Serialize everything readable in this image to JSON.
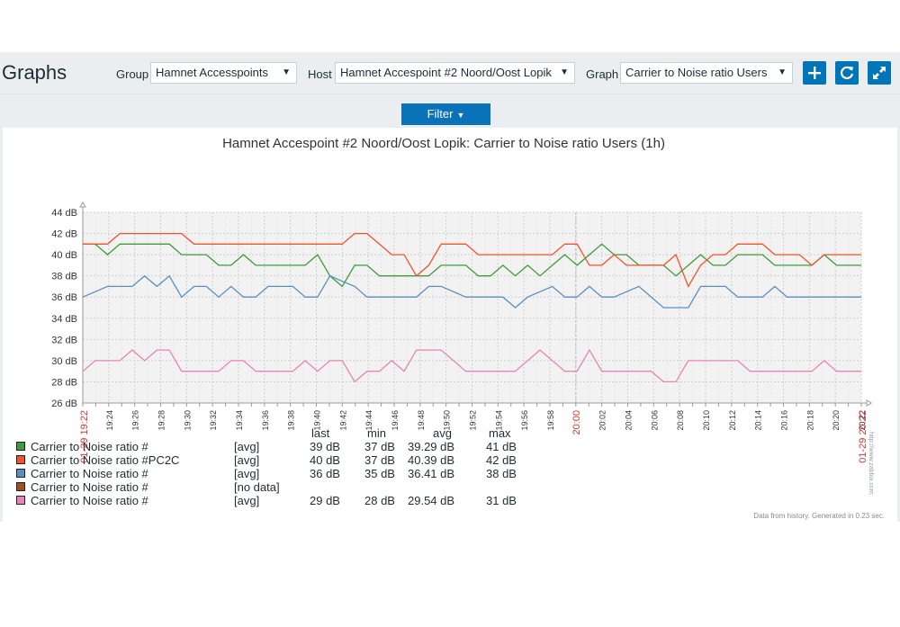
{
  "page": {
    "title": "Graphs"
  },
  "controls": {
    "group_label": "Group",
    "group_value": "Hamnet Accesspoints",
    "host_label": "Host",
    "host_value": "Hamnet Accespoint #2 Noord/Oost Lopik",
    "graph_label": "Graph",
    "graph_value": "Carrier to Noise ratio Users",
    "filter_label": "Filter"
  },
  "icons": [
    "plus-icon",
    "refresh-icon",
    "fullscreen-icon",
    "chevron-down-icon"
  ],
  "colors": {
    "accent": "#0275b8",
    "green": "#3f9a3a",
    "orange": "#f0542a",
    "blue": "#5b8fbe",
    "brown": "#a04d22",
    "pink": "#e884b6"
  },
  "chart_data": {
    "type": "line",
    "title": "Hamnet Accespoint #2 Noord/Oost Lopik: Carrier to Noise ratio Users (1h)",
    "ylim": [
      26,
      44
    ],
    "y_ticks": [
      "44 dB",
      "42 dB",
      "40 dB",
      "38 dB",
      "36 dB",
      "34 dB",
      "32 dB",
      "30 dB",
      "28 dB",
      "26 dB"
    ],
    "x_ticks": [
      "19:24",
      "19:26",
      "19:28",
      "19:30",
      "19:32",
      "19:34",
      "19:36",
      "19:38",
      "19:40",
      "19:42",
      "19:44",
      "19:46",
      "19:48",
      "19:50",
      "19:52",
      "19:54",
      "19:56",
      "19:58",
      "20:00",
      "20:02",
      "20:04",
      "20:06",
      "20:08",
      "20:10",
      "20:12",
      "20:14",
      "20:16",
      "20:18",
      "20:20",
      "20:22"
    ],
    "x_start_label": "01-29 19:22",
    "x_end_label": "01-29 20:22",
    "grid": true,
    "legend_placement": "bottom",
    "series": [
      {
        "color": "#3f9a3a",
        "values": [
          41,
          41,
          40,
          41,
          41,
          41,
          41,
          41,
          40,
          40,
          40,
          39,
          39,
          40,
          39,
          39,
          39,
          39,
          39,
          40,
          38,
          37,
          39,
          39,
          38,
          38,
          38,
          38,
          38,
          39,
          39,
          39,
          38,
          38,
          39,
          38,
          39,
          38,
          39,
          40,
          39,
          40,
          41,
          40,
          40,
          39,
          39,
          39,
          38,
          39,
          40,
          39,
          39,
          40,
          40,
          40,
          39,
          39,
          39,
          39,
          40,
          39,
          39,
          39
        ]
      },
      {
        "color": "#f0542a",
        "values": [
          41,
          41,
          41,
          42,
          42,
          42,
          42,
          42,
          42,
          41,
          41,
          41,
          41,
          41,
          41,
          41,
          41,
          41,
          41,
          41,
          41,
          41,
          42,
          42,
          41,
          40,
          40,
          38,
          39,
          41,
          41,
          41,
          40,
          40,
          40,
          40,
          40,
          40,
          40,
          41,
          41,
          39,
          39,
          40,
          39,
          39,
          39,
          39,
          40,
          37,
          39,
          40,
          40,
          41,
          41,
          41,
          40,
          40,
          40,
          39,
          40,
          40,
          40,
          40
        ]
      },
      {
        "color": "#5b8fbe",
        "values": [
          36,
          36.5,
          37,
          37,
          37,
          38,
          37,
          38,
          36,
          37,
          37,
          36,
          37,
          36,
          36,
          37,
          37,
          37,
          36,
          36,
          38,
          37.5,
          37,
          36,
          36,
          36,
          36,
          36,
          37,
          37,
          36.5,
          36,
          36,
          36,
          36,
          35,
          36,
          36.5,
          37,
          36,
          36,
          37,
          36,
          36,
          36.5,
          37,
          36,
          35,
          35,
          35,
          37,
          37,
          37,
          36,
          36,
          36,
          37,
          36,
          36,
          36,
          36,
          36,
          36,
          36
        ]
      },
      {
        "color": "#e884b6",
        "values": [
          29,
          30,
          30,
          30,
          31,
          30,
          31,
          31,
          29,
          29,
          29,
          29,
          30,
          30,
          29,
          29,
          29,
          29,
          30,
          29,
          30,
          30,
          28,
          29,
          29,
          30,
          29,
          31,
          31,
          31,
          30,
          29,
          29,
          29,
          29,
          29,
          30,
          31,
          30,
          29,
          29,
          31,
          29,
          29,
          29,
          29,
          29,
          28,
          28,
          30,
          30,
          30,
          30,
          30,
          29,
          29,
          29,
          29,
          29,
          29,
          30,
          29,
          29,
          29
        ]
      }
    ]
  },
  "legend": {
    "headers": [
      "last",
      "min",
      "avg",
      "max"
    ],
    "rows": [
      {
        "name": "Carrier to Noise ratio #",
        "func": "[avg]",
        "last": "39 dB",
        "min": "37 dB",
        "avg": "39.29 dB",
        "max": "41 dB",
        "color": "#3f9a3a"
      },
      {
        "name": "Carrier to Noise ratio #PC2C",
        "func": "[avg]",
        "last": "40 dB",
        "min": "37 dB",
        "avg": "40.39 dB",
        "max": "42 dB",
        "color": "#f0542a"
      },
      {
        "name": "Carrier to Noise ratio #",
        "func": "[avg]",
        "last": "36 dB",
        "min": "35 dB",
        "avg": "36.41 dB",
        "max": "38 dB",
        "color": "#5b8fbe"
      },
      {
        "name": "Carrier to Noise ratio #",
        "func": "[no data]",
        "last": "",
        "min": "",
        "avg": "",
        "max": "",
        "color": "#a04d22"
      },
      {
        "name": "Carrier to Noise ratio #",
        "func": "[avg]",
        "last": "29 dB",
        "min": "28 dB",
        "avg": "29.54 dB",
        "max": "31 dB",
        "color": "#e884b6"
      }
    ]
  },
  "footer": {
    "note": "Data from history. Generated in 0.23 sec.",
    "watermark": "http://www.zabbix.com"
  }
}
